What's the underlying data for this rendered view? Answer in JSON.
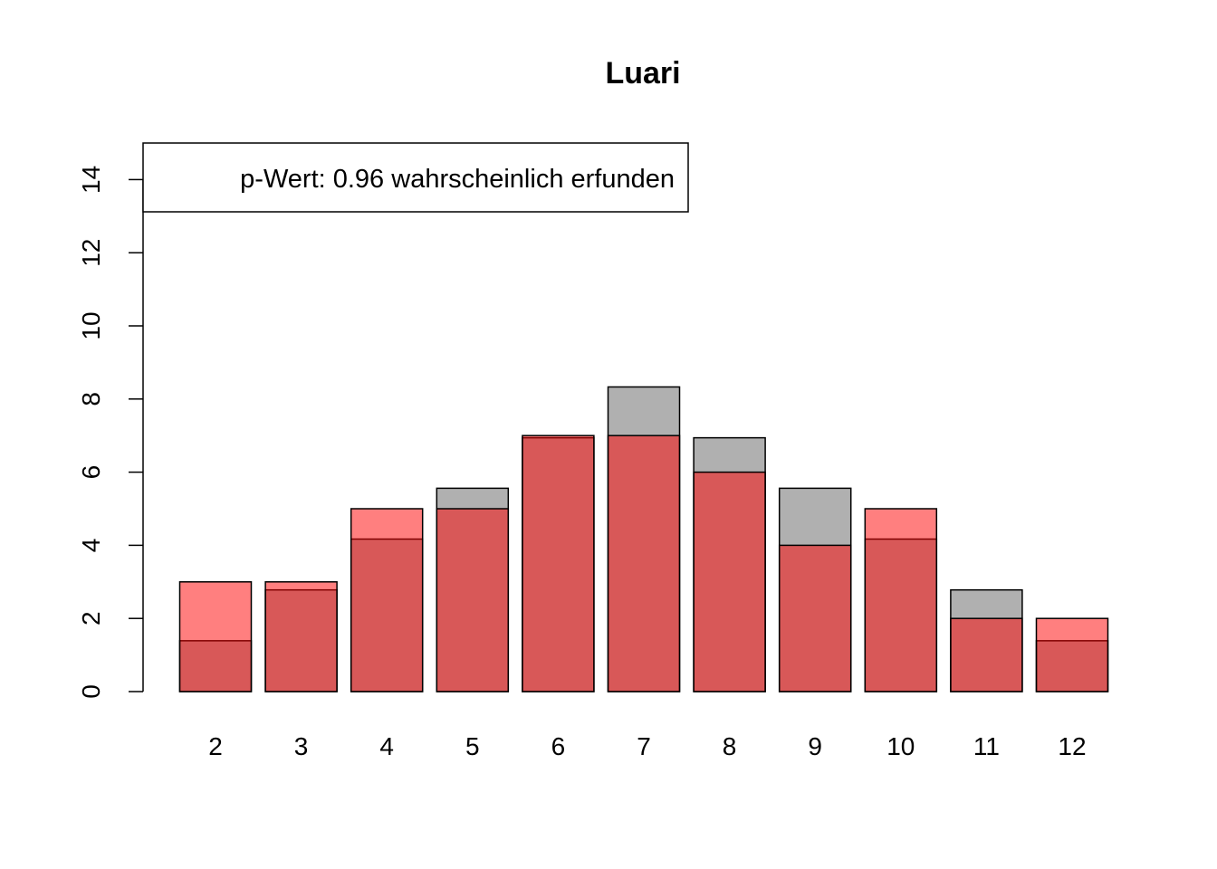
{
  "chart_data": {
    "type": "bar",
    "title": "Luari",
    "xlabel": "",
    "ylabel": "",
    "categories": [
      "2",
      "3",
      "4",
      "5",
      "6",
      "7",
      "8",
      "9",
      "10",
      "11",
      "12"
    ],
    "series": [
      {
        "color": "#b0b0b0",
        "values": [
          1.39,
          2.78,
          4.17,
          5.56,
          6.94,
          8.33,
          6.94,
          5.56,
          4.17,
          2.78,
          1.39
        ]
      },
      {
        "color": "#ff000080",
        "values": [
          3,
          3,
          5,
          5,
          7,
          7,
          6,
          4,
          5,
          2,
          2
        ]
      }
    ],
    "ylim": [
      0,
      15
    ],
    "yticks": [
      0,
      2,
      4,
      6,
      8,
      10,
      12,
      14
    ],
    "legend": {
      "text": "p-Wert: 0.96 wahrscheinlich erfunden",
      "position": "top-left"
    },
    "grid": false
  }
}
